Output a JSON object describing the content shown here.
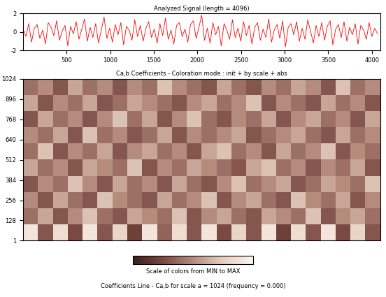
{
  "chart_data": [
    {
      "type": "line",
      "title": "Analyzed Signal (length = 4096)",
      "color": "#ff0000",
      "x": [
        1,
        33,
        65,
        97,
        129,
        161,
        193,
        225,
        257,
        289,
        321,
        353,
        385,
        417,
        449,
        481,
        513,
        545,
        577,
        609,
        641,
        673,
        705,
        737,
        769,
        801,
        833,
        865,
        897,
        929,
        961,
        993,
        1025,
        1057,
        1089,
        1121,
        1153,
        1185,
        1217,
        1249,
        1281,
        1313,
        1345,
        1377,
        1409,
        1441,
        1473,
        1505,
        1537,
        1569,
        1601,
        1633,
        1665,
        1697,
        1729,
        1761,
        1793,
        1825,
        1857,
        1889,
        1921,
        1953,
        1985,
        2017,
        2049,
        2081,
        2113,
        2145,
        2177,
        2209,
        2241,
        2273,
        2305,
        2337,
        2369,
        2401,
        2433,
        2465,
        2497,
        2529,
        2561,
        2593,
        2625,
        2657,
        2689,
        2721,
        2753,
        2785,
        2817,
        2849,
        2881,
        2913,
        2945,
        2977,
        3009,
        3041,
        3073,
        3105,
        3137,
        3169,
        3201,
        3233,
        3265,
        3297,
        3329,
        3361,
        3393,
        3425,
        3457,
        3489,
        3521,
        3553,
        3585,
        3617,
        3649,
        3681,
        3713,
        3745,
        3777,
        3809,
        3841,
        3873,
        3905,
        3937,
        3969,
        4001,
        4033,
        4065
      ],
      "values": [
        0.3,
        -0.5,
        0.9,
        -1.1,
        0.4,
        0.8,
        -0.7,
        0.2,
        -1.3,
        1.0,
        0.5,
        -0.4,
        1.2,
        -0.9,
        0.1,
        0.7,
        -1.5,
        0.6,
        -0.2,
        1.1,
        -0.8,
        0.3,
        1.4,
        -1.0,
        0.5,
        -0.6,
        0.9,
        -1.2,
        0.2,
        1.6,
        -0.7,
        0.4,
        -1.1,
        0.8,
        -0.3,
        1.0,
        -1.4,
        0.6,
        0.2,
        -0.9,
        1.3,
        -0.5,
        0.7,
        -1.0,
        0.4,
        1.1,
        -0.6,
        0.3,
        -1.2,
        0.9,
        -0.4,
        1.5,
        -0.8,
        0.2,
        -1.3,
        0.7,
        1.0,
        -0.5,
        0.3,
        -1.1,
        0.8,
        1.2,
        -0.7,
        0.5,
        1.8,
        -0.9,
        0.4,
        -1.2,
        1.0,
        -0.3,
        0.6,
        -1.5,
        0.9,
        0.2,
        -0.8,
        1.3,
        -0.6,
        0.4,
        -1.0,
        1.1,
        -0.4,
        0.7,
        -1.3,
        0.5,
        1.0,
        -0.9,
        0.3,
        -0.6,
        1.4,
        -1.1,
        0.2,
        0.8,
        -0.7,
        1.2,
        -1.6,
        0.5,
        0.9,
        -0.3,
        1.1,
        -1.0,
        0.4,
        -0.8,
        1.3,
        0.1,
        -1.2,
        0.7,
        -0.5,
        1.0,
        -0.9,
        0.6,
        1.2,
        -1.4,
        0.3,
        0.8,
        -0.6,
        1.1,
        -1.0,
        0.5,
        -0.3,
        0.9,
        -1.3,
        0.7,
        0.2,
        -0.8,
        1.0,
        -0.5,
        0.4,
        -0.2
      ],
      "xlim": [
        1,
        4096
      ],
      "xticks": [
        500,
        1000,
        1500,
        2000,
        2500,
        3000,
        3500,
        4000
      ],
      "ylim": [
        -2,
        2
      ],
      "yticks": [
        -2,
        0,
        2
      ]
    },
    {
      "type": "heatmap",
      "title": "Ca,b Coefficients - Coloration mode : init + by scale + abs",
      "xlim": [
        1,
        4096
      ],
      "ylim": [
        1,
        1024
      ],
      "yticks": [
        1,
        128,
        256,
        384,
        512,
        640,
        768,
        896,
        1024
      ],
      "tick_labels": "y",
      "cells": [
        [
          0.9,
          0.3,
          0.85,
          0.25,
          0.9,
          0.3,
          0.8,
          0.2,
          0.9,
          0.35,
          0.85,
          0.3,
          0.9,
          0.25,
          0.8,
          0.3,
          0.9,
          0.2,
          0.85,
          0.3,
          0.9,
          0.25,
          0.8,
          0.3
        ],
        [
          0.4,
          0.6,
          0.3,
          0.5,
          0.7,
          0.4,
          0.3,
          0.6,
          0.5,
          0.4,
          0.7,
          0.3,
          0.5,
          0.6,
          0.4,
          0.3,
          0.6,
          0.5,
          0.4,
          0.7,
          0.3,
          0.5,
          0.6,
          0.4
        ],
        [
          0.5,
          0.3,
          0.6,
          0.4,
          0.3,
          0.7,
          0.5,
          0.4,
          0.3,
          0.6,
          0.4,
          0.5,
          0.7,
          0.3,
          0.5,
          0.6,
          0.4,
          0.3,
          0.7,
          0.5,
          0.4,
          0.6,
          0.3,
          0.5
        ],
        [
          0.3,
          0.5,
          0.4,
          0.7,
          0.5,
          0.3,
          0.6,
          0.4,
          0.5,
          0.3,
          0.6,
          0.4,
          0.3,
          0.5,
          0.7,
          0.4,
          0.5,
          0.6,
          0.3,
          0.4,
          0.6,
          0.5,
          0.4,
          0.7
        ],
        [
          0.6,
          0.4,
          0.5,
          0.3,
          0.6,
          0.5,
          0.4,
          0.7,
          0.3,
          0.5,
          0.4,
          0.6,
          0.5,
          0.4,
          0.3,
          0.6,
          0.7,
          0.4,
          0.5,
          0.3,
          0.5,
          0.4,
          0.6,
          0.3
        ],
        [
          0.4,
          0.7,
          0.3,
          0.5,
          0.4,
          0.6,
          0.3,
          0.5,
          0.6,
          0.4,
          0.5,
          0.3,
          0.6,
          0.7,
          0.4,
          0.5,
          0.3,
          0.6,
          0.4,
          0.5,
          0.7,
          0.3,
          0.5,
          0.4
        ],
        [
          0.5,
          0.4,
          0.6,
          0.3,
          0.7,
          0.4,
          0.5,
          0.3,
          0.4,
          0.6,
          0.3,
          0.5,
          0.4,
          0.5,
          0.6,
          0.3,
          0.4,
          0.5,
          0.6,
          0.4,
          0.3,
          0.6,
          0.4,
          0.5
        ],
        [
          0.3,
          0.6,
          0.4,
          0.5,
          0.3,
          0.5,
          0.7,
          0.4,
          0.6,
          0.3,
          0.5,
          0.7,
          0.4,
          0.3,
          0.5,
          0.4,
          0.6,
          0.3,
          0.5,
          0.6,
          0.4,
          0.5,
          0.3,
          0.6
        ],
        [
          0.6,
          0.3,
          0.5,
          0.4,
          0.6,
          0.3,
          0.4,
          0.6,
          0.5,
          0.4,
          0.3,
          0.5,
          0.6,
          0.4,
          0.5,
          0.7,
          0.3,
          0.5,
          0.4,
          0.3,
          0.6,
          0.4,
          0.5,
          0.3
        ],
        [
          0.4,
          0.5,
          0.3,
          0.6,
          0.4,
          0.5,
          0.3,
          0.5,
          0.4,
          0.7,
          0.5,
          0.4,
          0.3,
          0.6,
          0.4,
          0.3,
          0.5,
          0.4,
          0.6,
          0.5,
          0.3,
          0.7,
          0.4,
          0.5
        ]
      ],
      "colorbar": {
        "label": "Scale of colors from MIN to MAX",
        "range": [
          0,
          1
        ]
      },
      "annotations": [
        "Coefficients Line - Ca,b for scale a = 1024 (frequency = 0.000)"
      ]
    }
  ]
}
